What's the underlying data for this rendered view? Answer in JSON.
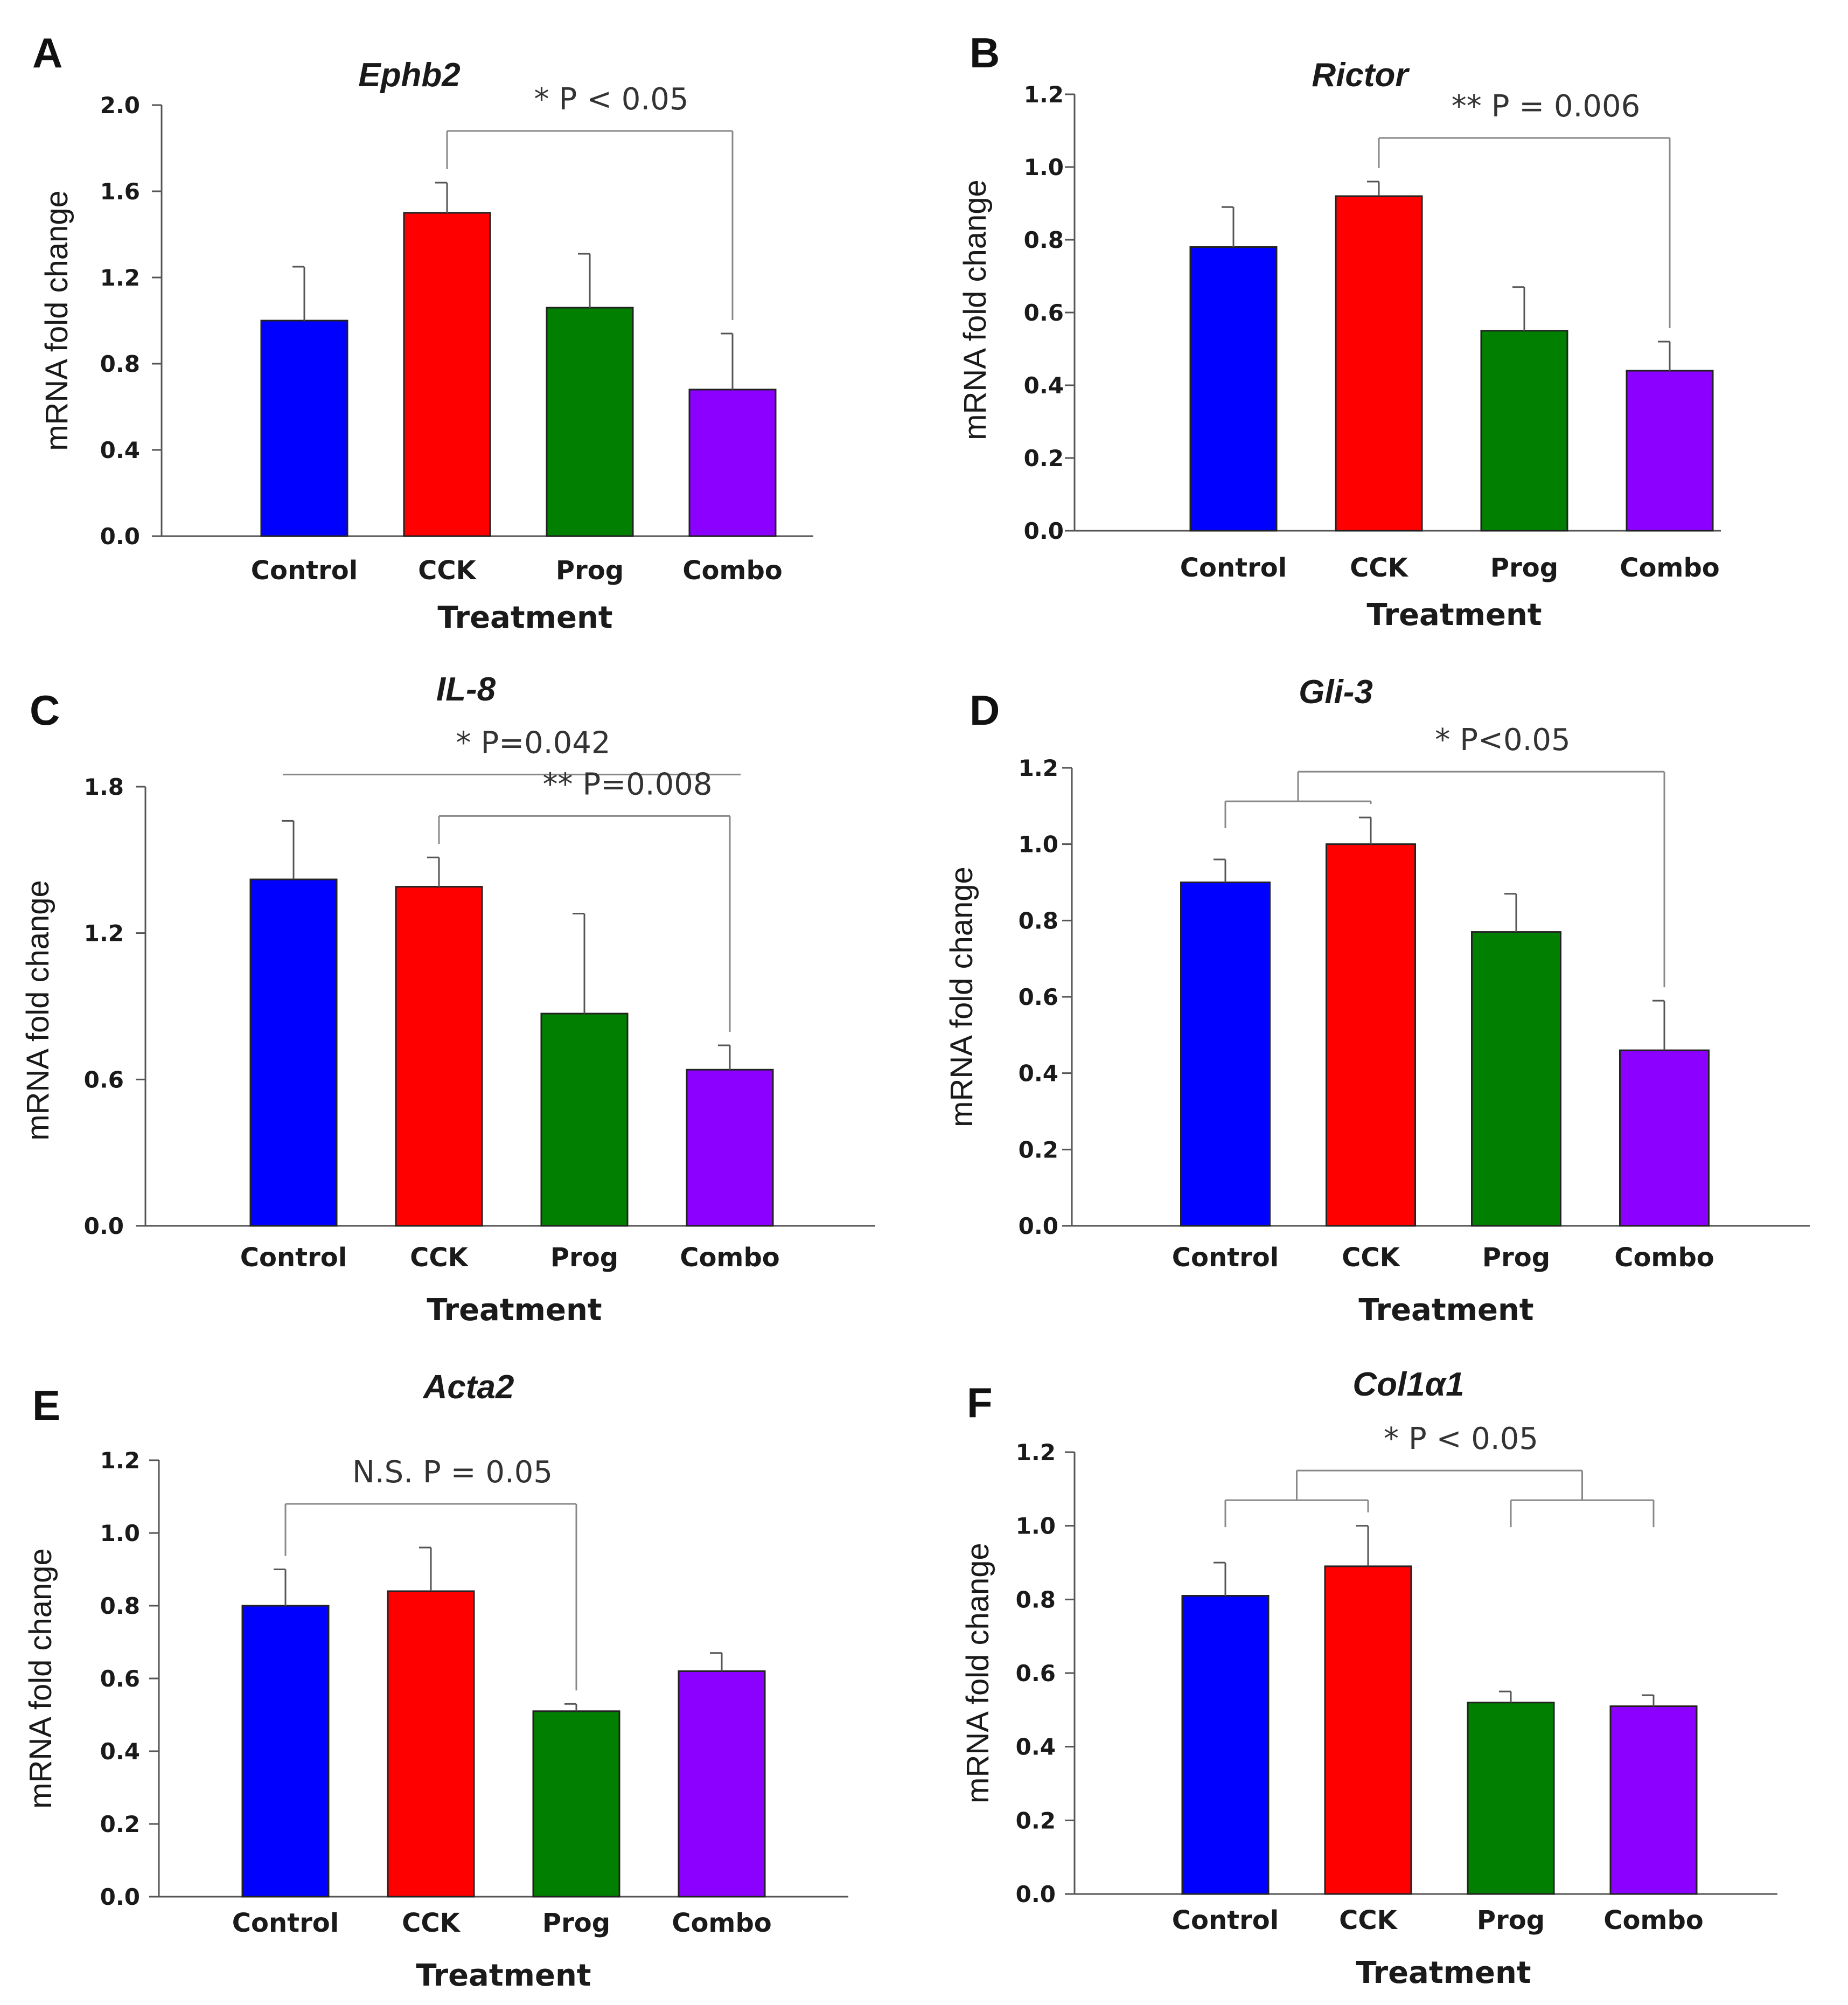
{
  "chart_data": [
    {
      "panel": "A",
      "type": "bar",
      "title": "Ephb2",
      "xlabel": "Treatment",
      "ylabel": "mRNA fold change",
      "categories": [
        "Control",
        "CCK",
        "Prog",
        "Combo"
      ],
      "values": [
        1.0,
        1.5,
        1.06,
        0.68
      ],
      "errors": [
        0.25,
        0.14,
        0.25,
        0.26
      ],
      "colors": [
        "#0000ff",
        "#ff0000",
        "#007f00",
        "#8b00ff"
      ],
      "ylim": [
        0,
        2.0
      ],
      "yticks": [
        "0.0",
        "0.4",
        "0.8",
        "1.2",
        "1.6",
        "2.0"
      ],
      "annotations": [
        {
          "stars": "*",
          "text": "P < 0.05",
          "groups_left": [
            1
          ],
          "groups_right": [
            3
          ],
          "height": 1.88
        }
      ]
    },
    {
      "panel": "B",
      "type": "bar",
      "title": "Rictor",
      "xlabel": "Treatment",
      "ylabel": "mRNA fold change",
      "categories": [
        "Control",
        "CCK",
        "Prog",
        "Combo"
      ],
      "values": [
        0.78,
        0.92,
        0.55,
        0.44
      ],
      "errors": [
        0.11,
        0.04,
        0.12,
        0.08
      ],
      "colors": [
        "#0000ff",
        "#ff0000",
        "#007f00",
        "#8b00ff"
      ],
      "ylim": [
        0,
        1.2
      ],
      "yticks": [
        "0.0",
        "0.2",
        "0.4",
        "0.6",
        "0.8",
        "1.0",
        "1.2"
      ],
      "annotations": [
        {
          "stars": "**",
          "text": "P = 0.006",
          "groups_left": [
            1
          ],
          "groups_right": [
            3
          ],
          "height": 1.08
        }
      ]
    },
    {
      "panel": "C",
      "type": "bar",
      "title": "IL-8",
      "xlabel": "Treatment",
      "ylabel": "mRNA fold change",
      "categories": [
        "Control",
        "CCK",
        "Prog",
        "Combo"
      ],
      "values": [
        1.42,
        1.39,
        0.87,
        0.64
      ],
      "errors": [
        0.24,
        0.12,
        0.41,
        0.1
      ],
      "colors": [
        "#0000ff",
        "#ff0000",
        "#007f00",
        "#8b00ff"
      ],
      "ylim": [
        0,
        1.8
      ],
      "yticks": [
        "0.0",
        "0.6",
        "1.2",
        "1.8"
      ],
      "annotations": [
        {
          "stars": "*",
          "text": "P=0.042",
          "groups_left": [
            0
          ],
          "groups_right": [
            3
          ],
          "height": 1.85,
          "flat": true
        },
        {
          "stars": "**",
          "text": "P=0.008",
          "groups_left": [
            1
          ],
          "groups_right": [
            3
          ],
          "height": 1.68
        }
      ]
    },
    {
      "panel": "D",
      "type": "bar",
      "title": "Gli-3",
      "xlabel": "Treatment",
      "ylabel": "mRNA fold change",
      "categories": [
        "Control",
        "CCK",
        "Prog",
        "Combo"
      ],
      "values": [
        0.9,
        1.0,
        0.77,
        0.46
      ],
      "errors": [
        0.06,
        0.07,
        0.1,
        0.13
      ],
      "colors": [
        "#0000ff",
        "#ff0000",
        "#007f00",
        "#8b00ff"
      ],
      "ylim": [
        0,
        1.2
      ],
      "yticks": [
        "0.0",
        "0.2",
        "0.4",
        "0.6",
        "0.8",
        "1.0",
        "1.2"
      ],
      "annotations": [
        {
          "stars": "*",
          "text": "P<0.05",
          "groups_left": [
            0,
            1
          ],
          "groups_right": [
            3
          ],
          "height": 1.19
        }
      ]
    },
    {
      "panel": "E",
      "type": "bar",
      "title": "Acta2",
      "xlabel": "Treatment",
      "ylabel": "mRNA fold change",
      "categories": [
        "Control",
        "CCK",
        "Prog",
        "Combo"
      ],
      "values": [
        0.8,
        0.84,
        0.51,
        0.62
      ],
      "errors": [
        0.1,
        0.12,
        0.02,
        0.05
      ],
      "colors": [
        "#0000ff",
        "#ff0000",
        "#007f00",
        "#8b00ff"
      ],
      "ylim": [
        0,
        1.2
      ],
      "yticks": [
        "0.0",
        "0.2",
        "0.4",
        "0.6",
        "0.8",
        "1.0",
        "1.2"
      ],
      "annotations": [
        {
          "stars": "N.S.",
          "text": "P = 0.05",
          "groups_left": [
            0
          ],
          "groups_right": [
            2
          ],
          "height": 1.08
        }
      ]
    },
    {
      "panel": "F",
      "type": "bar",
      "title": "Col1α1",
      "xlabel": "Treatment",
      "ylabel": "mRNA fold change",
      "categories": [
        "Control",
        "CCK",
        "Prog",
        "Combo"
      ],
      "values": [
        0.81,
        0.89,
        0.52,
        0.51
      ],
      "errors": [
        0.09,
        0.11,
        0.03,
        0.03
      ],
      "colors": [
        "#0000ff",
        "#ff0000",
        "#007f00",
        "#8b00ff"
      ],
      "ylim": [
        0,
        1.2
      ],
      "yticks": [
        "0.0",
        "0.2",
        "0.4",
        "0.6",
        "0.8",
        "1.0",
        "1.2"
      ],
      "annotations": [
        {
          "stars": "*",
          "text": "P < 0.05",
          "groups_left": [
            0,
            1
          ],
          "groups_right": [
            2,
            3
          ],
          "height": 1.15
        }
      ]
    }
  ]
}
